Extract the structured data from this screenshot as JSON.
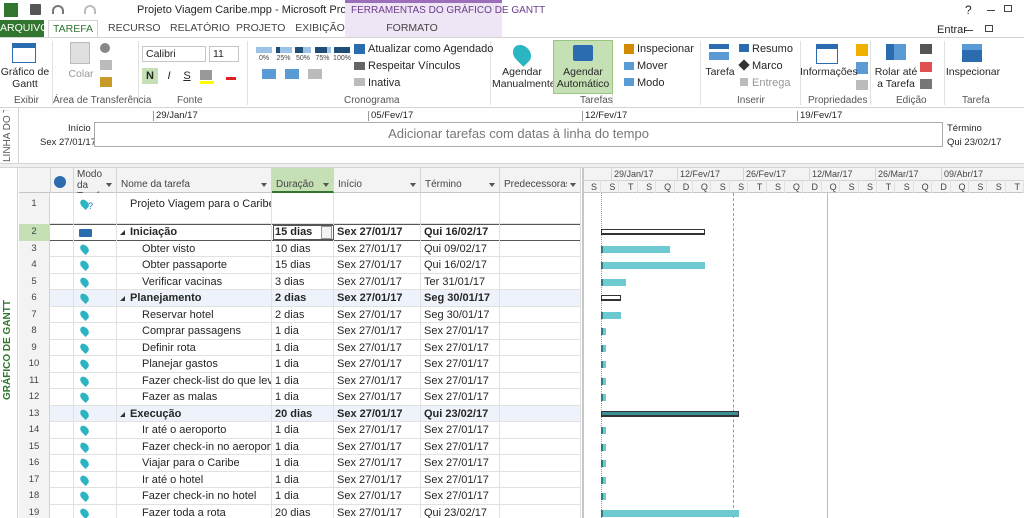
{
  "window": {
    "title": "Projeto Viagem Caribe.mpp - Microsoft Project",
    "context_tab": "FERRAMENTAS DO GRÁFICO DE GANTT",
    "help": "?",
    "sign_in": "Entrar"
  },
  "tabs": [
    "ARQUIVO",
    "TAREFA",
    "RECURSO",
    "RELATÓRIO",
    "PROJETO",
    "EXIBIÇÃO",
    "FORMATO"
  ],
  "ribbon": {
    "view": {
      "button": "Gráfico de Gantt",
      "group": "Exibir"
    },
    "clipboard": {
      "paste": "Colar",
      "group": "Área de Transferência"
    },
    "font": {
      "name": "Calibri",
      "size": "11",
      "bold": "N",
      "italic": "I",
      "underline": "S",
      "group": "Fonte"
    },
    "schedule": {
      "percents": [
        "0%",
        "25%",
        "50%",
        "75%",
        "100%"
      ],
      "update": "Atualizar como Agendado",
      "links": "Respeitar Vínculos",
      "inactive": "Inativa",
      "group": "Cronograma"
    },
    "tasks": {
      "manual": "Agendar Manualmente",
      "auto": "Agendar Automático",
      "inspect": "Inspecionar",
      "move": "Mover",
      "mode": "Modo",
      "group": "Tarefas"
    },
    "insert": {
      "task": "Tarefa",
      "summary": "Resumo",
      "milestone": "Marco",
      "deliverable": "Entrega",
      "group": "Inserir"
    },
    "properties": {
      "info": "Informações",
      "group": "Propriedades"
    },
    "editing": {
      "scroll": "Rolar até a Tarefa",
      "group": "Edição"
    },
    "task": {
      "inspect": "Inspecionar",
      "group": "Tarefa"
    }
  },
  "timeline": {
    "side_label": "LINHA DO T",
    "start_label": "Início",
    "start_date": "Sex 27/01/17",
    "dates": [
      "29/Jan/17",
      "05/Fev/17",
      "12/Fev/17",
      "19/Fev/17"
    ],
    "placeholder": "Adicionar tarefas com datas à linha do tempo",
    "end_label": "Término",
    "end_date": "Qui 23/02/17"
  },
  "view_label": "GRÁFICO DE GANTT",
  "table": {
    "columns": {
      "mode": "Modo da Tarefa",
      "name": "Nome da tarefa",
      "duration": "Duração",
      "start": "Início",
      "finish": "Término",
      "predecessors": "Predecessoras"
    },
    "rows": [
      {
        "id": 1,
        "name": "Projeto Viagem para o Caribe",
        "level": 0
      },
      {
        "id": 2,
        "name": "Iniciação",
        "duration": "15 dias",
        "start": "Sex 27/01/17",
        "finish": "Qui 16/02/17",
        "summary": true,
        "level": 1
      },
      {
        "id": 3,
        "name": "Obter visto",
        "duration": "10 dias",
        "start": "Sex 27/01/17",
        "finish": "Qui 09/02/17",
        "level": 2
      },
      {
        "id": 4,
        "name": "Obter passaporte",
        "duration": "15 dias",
        "start": "Sex 27/01/17",
        "finish": "Qui 16/02/17",
        "level": 2
      },
      {
        "id": 5,
        "name": "Verificar vacinas",
        "duration": "3 dias",
        "start": "Sex 27/01/17",
        "finish": "Ter 31/01/17",
        "level": 2
      },
      {
        "id": 6,
        "name": "Planejamento",
        "duration": "2 dias",
        "start": "Sex 27/01/17",
        "finish": "Seg 30/01/17",
        "summary": true,
        "level": 1
      },
      {
        "id": 7,
        "name": "Reservar hotel",
        "duration": "2 dias",
        "start": "Sex 27/01/17",
        "finish": "Seg 30/01/17",
        "level": 2
      },
      {
        "id": 8,
        "name": "Comprar passagens",
        "duration": "1 dia",
        "start": "Sex 27/01/17",
        "finish": "Sex 27/01/17",
        "level": 2
      },
      {
        "id": 9,
        "name": "Definir rota",
        "duration": "1 dia",
        "start": "Sex 27/01/17",
        "finish": "Sex 27/01/17",
        "level": 2
      },
      {
        "id": 10,
        "name": "Planejar gastos",
        "duration": "1 dia",
        "start": "Sex 27/01/17",
        "finish": "Sex 27/01/17",
        "level": 2
      },
      {
        "id": 11,
        "name": "Fazer check-list do que levar",
        "duration": "1 dia",
        "start": "Sex 27/01/17",
        "finish": "Sex 27/01/17",
        "level": 2
      },
      {
        "id": 12,
        "name": "Fazer as malas",
        "duration": "1 dia",
        "start": "Sex 27/01/17",
        "finish": "Sex 27/01/17",
        "level": 2
      },
      {
        "id": 13,
        "name": "Execução",
        "duration": "20 dias",
        "start": "Sex 27/01/17",
        "finish": "Qui 23/02/17",
        "summary": true,
        "level": 1
      },
      {
        "id": 14,
        "name": "Ir até o aeroporto",
        "duration": "1 dia",
        "start": "Sex 27/01/17",
        "finish": "Sex 27/01/17",
        "level": 2
      },
      {
        "id": 15,
        "name": "Fazer check-in no aeroporto",
        "duration": "1 dia",
        "start": "Sex 27/01/17",
        "finish": "Sex 27/01/17",
        "level": 2
      },
      {
        "id": 16,
        "name": "Viajar para o Caribe",
        "duration": "1 dia",
        "start": "Sex 27/01/17",
        "finish": "Sex 27/01/17",
        "level": 2
      },
      {
        "id": 17,
        "name": "Ir até o hotel",
        "duration": "1 dia",
        "start": "Sex 27/01/17",
        "finish": "Sex 27/01/17",
        "level": 2
      },
      {
        "id": 18,
        "name": "Fazer check-in no hotel",
        "duration": "1 dia",
        "start": "Sex 27/01/17",
        "finish": "Sex 27/01/17",
        "level": 2
      },
      {
        "id": 19,
        "name": "Fazer toda a rota",
        "duration": "20 dias",
        "start": "Sex 27/01/17",
        "finish": "Qui 23/02/17",
        "level": 2
      }
    ]
  },
  "gantt": {
    "weeks": [
      "29/Jan/17",
      "12/Fev/17",
      "26/Fev/17",
      "12/Mar/17",
      "26/Mar/17",
      "09/Abr/17"
    ],
    "days": [
      "S",
      "S",
      "T",
      "S",
      "Q",
      "D",
      "Q",
      "S",
      "S",
      "T",
      "S",
      "Q",
      "D",
      "Q",
      "S",
      "S",
      "T",
      "S",
      "Q",
      "D",
      "Q",
      "S",
      "S",
      "T"
    ]
  }
}
